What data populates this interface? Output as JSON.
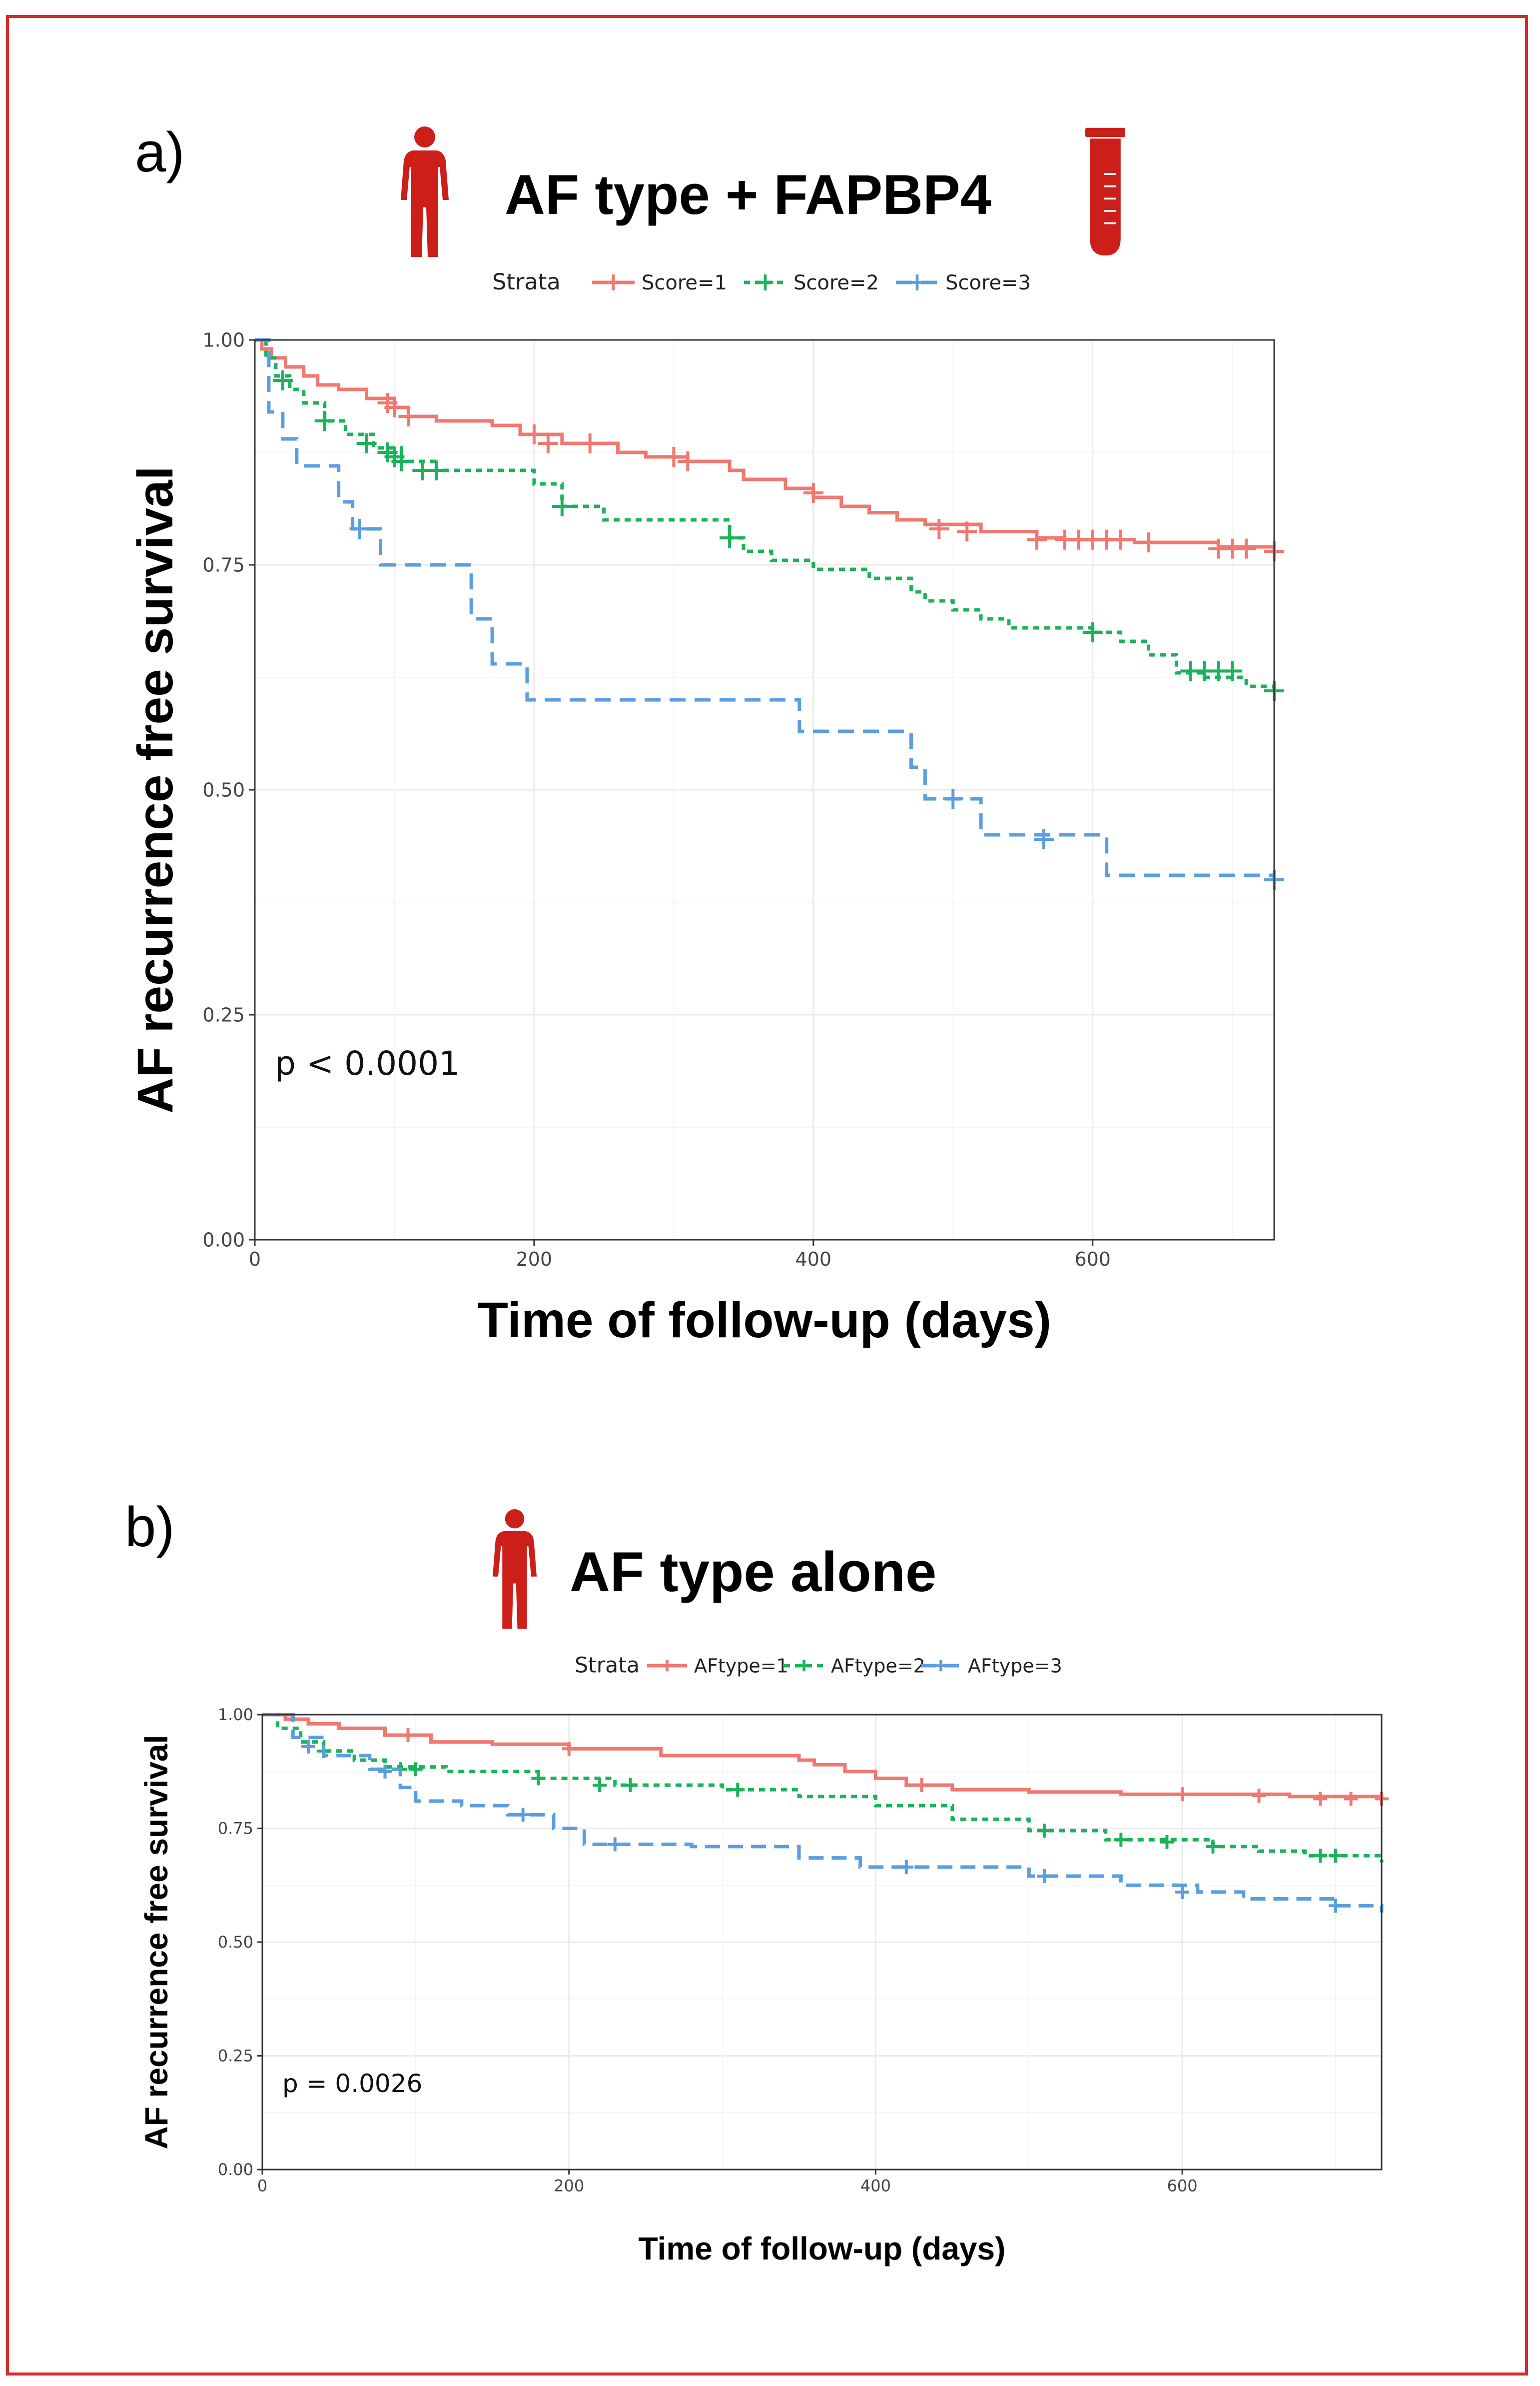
{
  "panels": {
    "a": {
      "label": "a)",
      "title": "AF type + FAPBP4"
    },
    "b": {
      "label": "b)",
      "title": "AF type alone"
    }
  },
  "colors": {
    "border": "#d42d2d",
    "icon": "#cc1f1a",
    "s1": "#f07870",
    "s2": "#1bb35a",
    "s3": "#5a9ee0"
  },
  "icons": {
    "person": "person-icon",
    "tube": "test-tube-icon"
  },
  "chart_data": [
    {
      "type": "line",
      "subtype": "kaplan-meier",
      "title": "AF type + FAPBP4",
      "xlabel": "Time of follow-up (days)",
      "ylabel": "AF recurrence free survival",
      "xlim": [
        0,
        730
      ],
      "ylim": [
        0,
        1
      ],
      "xticks": [
        0,
        200,
        400,
        600
      ],
      "xtick_labels": [
        "0",
        "200",
        "400",
        "600"
      ],
      "yticks": [
        0,
        0.25,
        0.5,
        0.75,
        1
      ],
      "ytick_labels": [
        "0.00",
        "0.25",
        "0.50",
        "0.75",
        "1.00"
      ],
      "legend_title": "Strata",
      "legend_position": "top",
      "annotation": "p < 0.0001",
      "grid": true,
      "series": [
        {
          "name": "Score=1",
          "color": "#f07870",
          "dash": "solid",
          "x": [
            0,
            5,
            12,
            22,
            35,
            45,
            60,
            80,
            100,
            110,
            130,
            170,
            190,
            220,
            260,
            280,
            310,
            340,
            350,
            380,
            400,
            420,
            440,
            460,
            480,
            520,
            560,
            580,
            630,
            690,
            730
          ],
          "y": [
            1.0,
            0.99,
            0.98,
            0.97,
            0.96,
            0.95,
            0.945,
            0.935,
            0.925,
            0.915,
            0.91,
            0.905,
            0.895,
            0.885,
            0.875,
            0.87,
            0.865,
            0.855,
            0.845,
            0.835,
            0.825,
            0.815,
            0.808,
            0.8,
            0.795,
            0.787,
            0.78,
            0.778,
            0.775,
            0.77,
            0.765
          ],
          "censor_x": [
            95,
            100,
            110,
            200,
            210,
            240,
            300,
            310,
            400,
            490,
            510,
            560,
            580,
            590,
            600,
            610,
            620,
            640,
            690,
            700,
            710,
            730
          ],
          "censor_y": [
            0.93,
            0.925,
            0.915,
            0.895,
            0.885,
            0.885,
            0.87,
            0.865,
            0.83,
            0.79,
            0.787,
            0.778,
            0.778,
            0.778,
            0.778,
            0.778,
            0.778,
            0.775,
            0.768,
            0.768,
            0.768,
            0.765
          ]
        },
        {
          "name": "Score=2",
          "color": "#1bb35a",
          "dash": "dotted",
          "x": [
            0,
            8,
            15,
            25,
            35,
            50,
            65,
            85,
            105,
            130,
            200,
            220,
            250,
            340,
            350,
            370,
            400,
            440,
            470,
            480,
            500,
            520,
            540,
            600,
            620,
            640,
            660,
            680,
            710,
            730
          ],
          "y": [
            1.0,
            0.98,
            0.96,
            0.945,
            0.93,
            0.91,
            0.895,
            0.88,
            0.865,
            0.855,
            0.84,
            0.815,
            0.8,
            0.78,
            0.765,
            0.755,
            0.745,
            0.735,
            0.72,
            0.71,
            0.7,
            0.69,
            0.68,
            0.675,
            0.665,
            0.65,
            0.63,
            0.625,
            0.615,
            0.61
          ],
          "censor_x": [
            20,
            50,
            80,
            95,
            100,
            105,
            120,
            130,
            220,
            340,
            600,
            670,
            680,
            690,
            700,
            730
          ],
          "censor_y": [
            0.955,
            0.91,
            0.885,
            0.875,
            0.87,
            0.865,
            0.855,
            0.855,
            0.815,
            0.78,
            0.675,
            0.632,
            0.632,
            0.632,
            0.632,
            0.61
          ],
          "marker_color": "#1bb35a"
        },
        {
          "name": "Score=3",
          "color": "#5a9ee0",
          "dash": "dashed",
          "x": [
            0,
            10,
            20,
            30,
            60,
            70,
            90,
            155,
            170,
            195,
            390,
            470,
            480,
            520,
            610,
            730
          ],
          "y": [
            1.0,
            0.92,
            0.89,
            0.86,
            0.82,
            0.79,
            0.75,
            0.69,
            0.64,
            0.6,
            0.565,
            0.525,
            0.49,
            0.45,
            0.405,
            0.4
          ],
          "censor_x": [
            75,
            500,
            565,
            730
          ],
          "censor_y": [
            0.79,
            0.49,
            0.445,
            0.4
          ]
        }
      ]
    },
    {
      "type": "line",
      "subtype": "kaplan-meier",
      "title": "AF type alone",
      "xlabel": "Time of follow-up (days)",
      "ylabel": "AF recurrence free survival",
      "xlim": [
        0,
        730
      ],
      "ylim": [
        0,
        1
      ],
      "xticks": [
        0,
        200,
        400,
        600
      ],
      "xtick_labels": [
        "0",
        "200",
        "400",
        "600"
      ],
      "yticks": [
        0,
        0.25,
        0.5,
        0.75,
        1
      ],
      "ytick_labels": [
        "0.00",
        "0.25",
        "0.50",
        "0.75",
        "1.00"
      ],
      "legend_title": "Strata",
      "legend_position": "top",
      "annotation": "p = 0.0026",
      "grid": true,
      "series": [
        {
          "name": "AFtype=1",
          "color": "#f07870",
          "dash": "solid",
          "x": [
            0,
            15,
            30,
            50,
            80,
            110,
            150,
            200,
            260,
            350,
            360,
            380,
            400,
            420,
            450,
            500,
            560,
            620,
            670,
            730
          ],
          "y": [
            1.0,
            0.99,
            0.98,
            0.97,
            0.955,
            0.94,
            0.935,
            0.925,
            0.91,
            0.9,
            0.89,
            0.875,
            0.86,
            0.845,
            0.835,
            0.83,
            0.825,
            0.825,
            0.82,
            0.815
          ],
          "censor_x": [
            95,
            200,
            430,
            600,
            650,
            690,
            710,
            730
          ],
          "censor_y": [
            0.955,
            0.925,
            0.845,
            0.825,
            0.822,
            0.815,
            0.815,
            0.815
          ]
        },
        {
          "name": "AFtype=2",
          "color": "#1bb35a",
          "dash": "dotted",
          "x": [
            0,
            10,
            25,
            40,
            60,
            80,
            120,
            180,
            230,
            300,
            350,
            400,
            450,
            500,
            550,
            620,
            650,
            680,
            730
          ],
          "y": [
            1.0,
            0.97,
            0.94,
            0.92,
            0.9,
            0.885,
            0.875,
            0.86,
            0.845,
            0.835,
            0.82,
            0.8,
            0.77,
            0.745,
            0.725,
            0.71,
            0.7,
            0.69,
            0.675
          ],
          "censor_x": [
            40,
            90,
            100,
            180,
            220,
            240,
            310,
            510,
            560,
            590,
            620,
            690,
            700
          ],
          "censor_y": [
            0.92,
            0.88,
            0.88,
            0.86,
            0.845,
            0.845,
            0.835,
            0.745,
            0.725,
            0.72,
            0.71,
            0.69,
            0.69
          ]
        },
        {
          "name": "AFtype=3",
          "color": "#5a9ee0",
          "dash": "dashed",
          "x": [
            0,
            20,
            40,
            70,
            90,
            100,
            130,
            160,
            190,
            210,
            280,
            350,
            390,
            500,
            560,
            610,
            640,
            700,
            730
          ],
          "y": [
            1.0,
            0.95,
            0.91,
            0.88,
            0.84,
            0.81,
            0.8,
            0.78,
            0.75,
            0.715,
            0.71,
            0.685,
            0.665,
            0.645,
            0.625,
            0.61,
            0.595,
            0.58,
            0.565
          ],
          "censor_x": [
            30,
            80,
            170,
            230,
            420,
            510,
            600,
            700
          ],
          "censor_y": [
            0.93,
            0.875,
            0.78,
            0.715,
            0.665,
            0.645,
            0.61,
            0.58
          ]
        }
      ]
    }
  ]
}
